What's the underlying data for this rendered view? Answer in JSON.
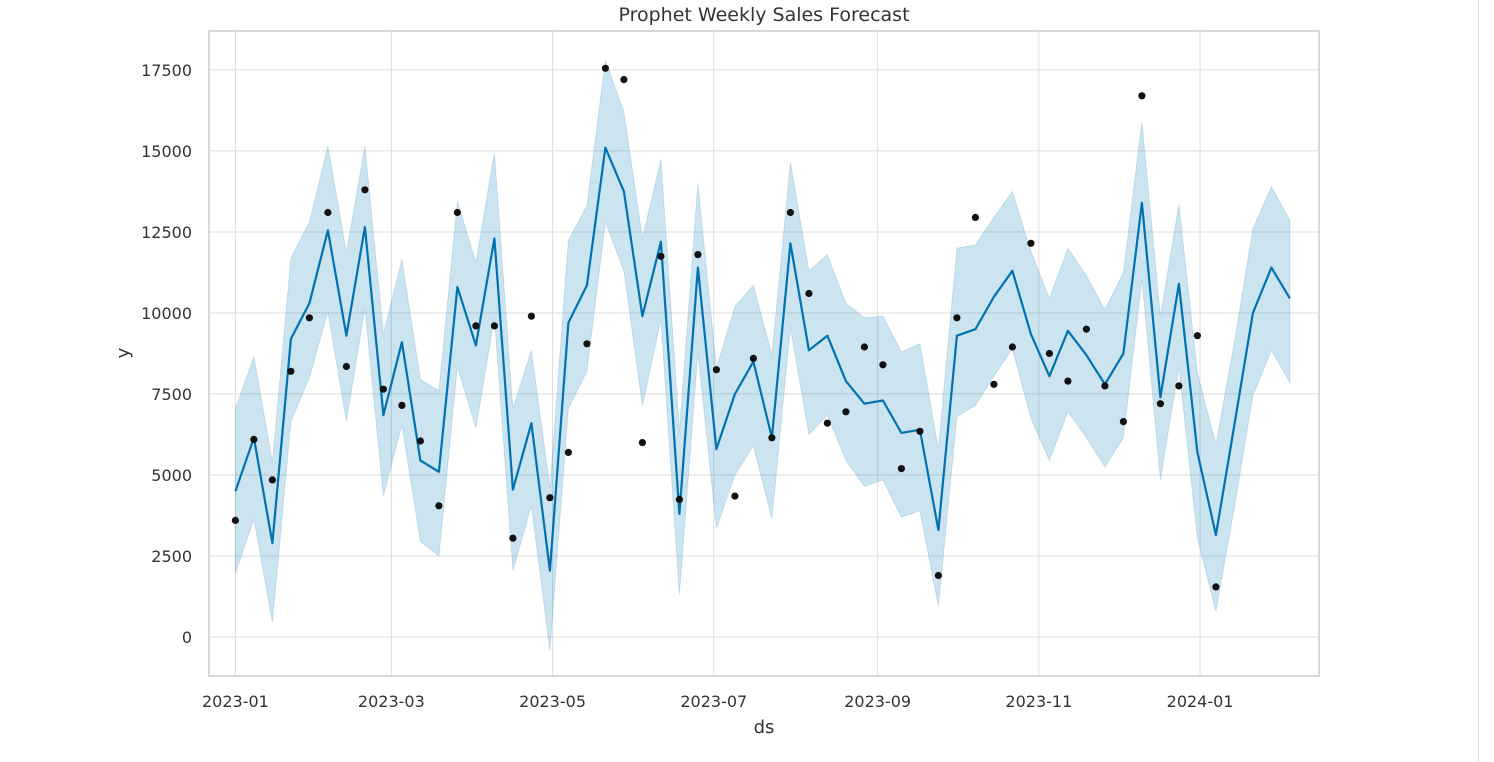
{
  "chart_data": {
    "type": "line",
    "title": "Prophet Weekly Sales Forecast",
    "xlabel": "ds",
    "ylabel": "y",
    "x_ticks": [
      "2023-01",
      "2023-03",
      "2023-05",
      "2023-07",
      "2023-09",
      "2023-11",
      "2024-01"
    ],
    "y_ticks": [
      "0",
      "2500",
      "5000",
      "7500",
      "10000",
      "12500",
      "15000",
      "17500"
    ],
    "x_start": "2023-01-01",
    "x_range": [
      "2022-12-22",
      "2024-02-15"
    ],
    "y_range": [
      -1200,
      18700
    ],
    "grid": true,
    "colors": {
      "forecast": "#0072B2",
      "band": "#0072B2",
      "points": "#111111",
      "grid": "#dddddd",
      "frame": "#cccccc"
    },
    "dates": [
      "2023-01-01",
      "2023-01-08",
      "2023-01-15",
      "2023-01-22",
      "2023-01-29",
      "2023-02-05",
      "2023-02-12",
      "2023-02-19",
      "2023-02-26",
      "2023-03-05",
      "2023-03-12",
      "2023-03-19",
      "2023-03-26",
      "2023-04-02",
      "2023-04-09",
      "2023-04-16",
      "2023-04-23",
      "2023-04-30",
      "2023-05-07",
      "2023-05-14",
      "2023-05-21",
      "2023-05-28",
      "2023-06-04",
      "2023-06-11",
      "2023-06-18",
      "2023-06-25",
      "2023-07-02",
      "2023-07-09",
      "2023-07-16",
      "2023-07-23",
      "2023-07-30",
      "2023-08-06",
      "2023-08-13",
      "2023-08-20",
      "2023-08-27",
      "2023-09-03",
      "2023-09-10",
      "2023-09-17",
      "2023-09-24",
      "2023-10-01",
      "2023-10-08",
      "2023-10-15",
      "2023-10-22",
      "2023-10-29",
      "2023-11-05",
      "2023-11-12",
      "2023-11-19",
      "2023-11-26",
      "2023-12-03",
      "2023-12-10",
      "2023-12-17",
      "2023-12-24",
      "2023-12-31",
      "2024-01-07",
      "2024-01-14",
      "2024-01-21",
      "2024-01-28",
      "2024-02-04"
    ],
    "series": [
      {
        "kind": "line",
        "values": [
          4500,
          6150,
          2900,
          9200,
          10300,
          12550,
          9300,
          12650,
          6850,
          9100,
          5450,
          5100,
          10800,
          9000,
          12300,
          4550,
          6600,
          2050,
          9700,
          10850,
          15100,
          13750,
          9900,
          12200,
          3800,
          11400,
          5800,
          7500,
          8500,
          6150,
          12150,
          8850,
          9300,
          7900,
          7200,
          7300,
          6300,
          6400,
          3300,
          9300,
          9500,
          10500,
          11300,
          9350,
          8050,
          9450,
          8700,
          7800,
          8750,
          13400,
          7400,
          10900,
          5700,
          3150,
          6550,
          10000,
          11400,
          10450
        ]
      },
      {
        "kind": "band",
        "lower": [
          1950,
          3650,
          450,
          6650,
          8000,
          10050,
          6650,
          10150,
          4350,
          6550,
          2950,
          2500,
          8350,
          6450,
          9850,
          2050,
          4050,
          -400,
          7050,
          8200,
          12800,
          11300,
          7150,
          9800,
          1300,
          8800,
          3350,
          5000,
          5900,
          3650,
          9550,
          6250,
          6850,
          5450,
          4650,
          4850,
          3700,
          3900,
          950,
          6800,
          7150,
          8050,
          8900,
          6750,
          5450,
          6950,
          6150,
          5250,
          6150,
          11050,
          4850,
          8350,
          3050,
          800,
          4000,
          7450,
          8850,
          7850
        ],
        "upper": [
          7050,
          8650,
          5400,
          11700,
          12800,
          15150,
          11850,
          15150,
          9350,
          11650,
          7950,
          7600,
          13450,
          11550,
          14950,
          7050,
          8850,
          4600,
          12250,
          13300,
          17800,
          16200,
          12300,
          14750,
          6350,
          14000,
          8300,
          10200,
          10850,
          8700,
          14650,
          11300,
          11800,
          10300,
          9850,
          9900,
          8800,
          9050,
          5800,
          12000,
          12100,
          12950,
          13750,
          11900,
          10450,
          12000,
          11150,
          10100,
          11250,
          15900,
          9900,
          13350,
          8150,
          5950,
          9100,
          12600,
          13900,
          12850
        ]
      },
      {
        "kind": "scatter",
        "dates": [
          "2023-01-01",
          "2023-01-08",
          "2023-01-15",
          "2023-01-22",
          "2023-01-29",
          "2023-02-05",
          "2023-02-12",
          "2023-02-19",
          "2023-02-26",
          "2023-03-05",
          "2023-03-12",
          "2023-03-19",
          "2023-03-26",
          "2023-04-02",
          "2023-04-09",
          "2023-04-16",
          "2023-04-23",
          "2023-04-30",
          "2023-05-07",
          "2023-05-14",
          "2023-05-21",
          "2023-05-28",
          "2023-06-04",
          "2023-06-11",
          "2023-06-18",
          "2023-06-25",
          "2023-07-02",
          "2023-07-09",
          "2023-07-16",
          "2023-07-23",
          "2023-07-30",
          "2023-08-06",
          "2023-08-13",
          "2023-08-20",
          "2023-08-27",
          "2023-09-03",
          "2023-09-10",
          "2023-09-17",
          "2023-09-24",
          "2023-10-01",
          "2023-10-08",
          "2023-10-15",
          "2023-10-22",
          "2023-10-29",
          "2023-11-05",
          "2023-11-12",
          "2023-11-19",
          "2023-11-26",
          "2023-12-03",
          "2023-12-10",
          "2023-12-17",
          "2023-12-24",
          "2023-12-31",
          "2024-01-07"
        ],
        "values": [
          3600,
          6100,
          4850,
          8200,
          9850,
          13100,
          8350,
          13800,
          7650,
          7150,
          6050,
          4050,
          13100,
          9600,
          9600,
          3050,
          9900,
          4300,
          5700,
          9050,
          17550,
          17200,
          6000,
          11750,
          4250,
          11800,
          8250,
          4350,
          8600,
          6150,
          13100,
          10600,
          6600,
          6950,
          8950,
          8400,
          5200,
          6350,
          1900,
          9850,
          12950,
          7800,
          8950,
          12150,
          8750,
          7900,
          9500,
          7750,
          6650,
          16700,
          7200,
          7750,
          9300,
          1550
        ]
      }
    ]
  }
}
